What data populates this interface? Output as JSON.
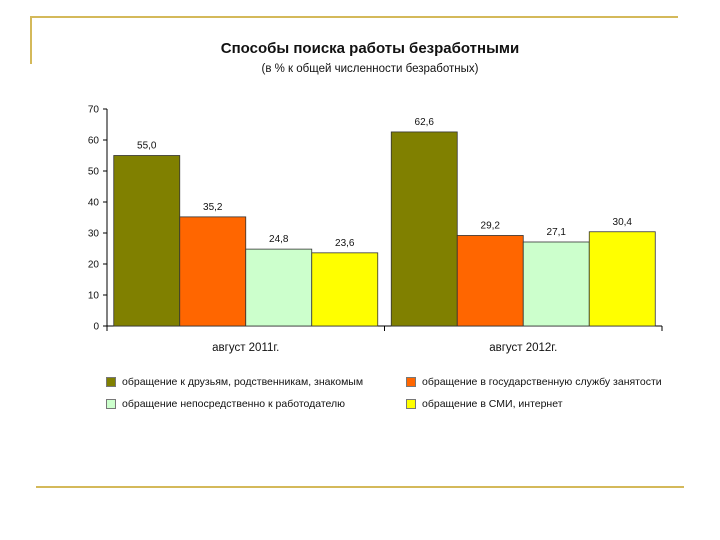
{
  "slide": {
    "frame_color": "#d4b95a"
  },
  "chart_data": {
    "type": "bar",
    "title": "Способы поиска работы безработными",
    "subtitle": "(в % к общей численности безработных)",
    "categories": [
      "август 2011г.",
      "август 2012г."
    ],
    "ylim": [
      0,
      70
    ],
    "yticks": [
      0,
      10,
      20,
      30,
      40,
      50,
      60,
      70
    ],
    "series": [
      {
        "name": "обращение к друзьям, родственникам, знакомым",
        "color": "#808000",
        "values": [
          55.0,
          62.6
        ],
        "labels": [
          "55,0",
          "62,6"
        ]
      },
      {
        "name": "обращение в государственную службу занятости",
        "color": "#ff6600",
        "values": [
          35.2,
          29.2
        ],
        "labels": [
          "35,2",
          "29,2"
        ]
      },
      {
        "name": "обращение непосредственно к работодателю",
        "color": "#ccffcc",
        "values": [
          24.8,
          27.1
        ],
        "labels": [
          "24,8",
          "27,1"
        ]
      },
      {
        "name": "обращение в СМИ, интернет",
        "color": "#ffff00",
        "values": [
          23.6,
          30.4
        ],
        "labels": [
          "23,6",
          "30,4"
        ]
      }
    ],
    "legend_position": "bottom"
  }
}
